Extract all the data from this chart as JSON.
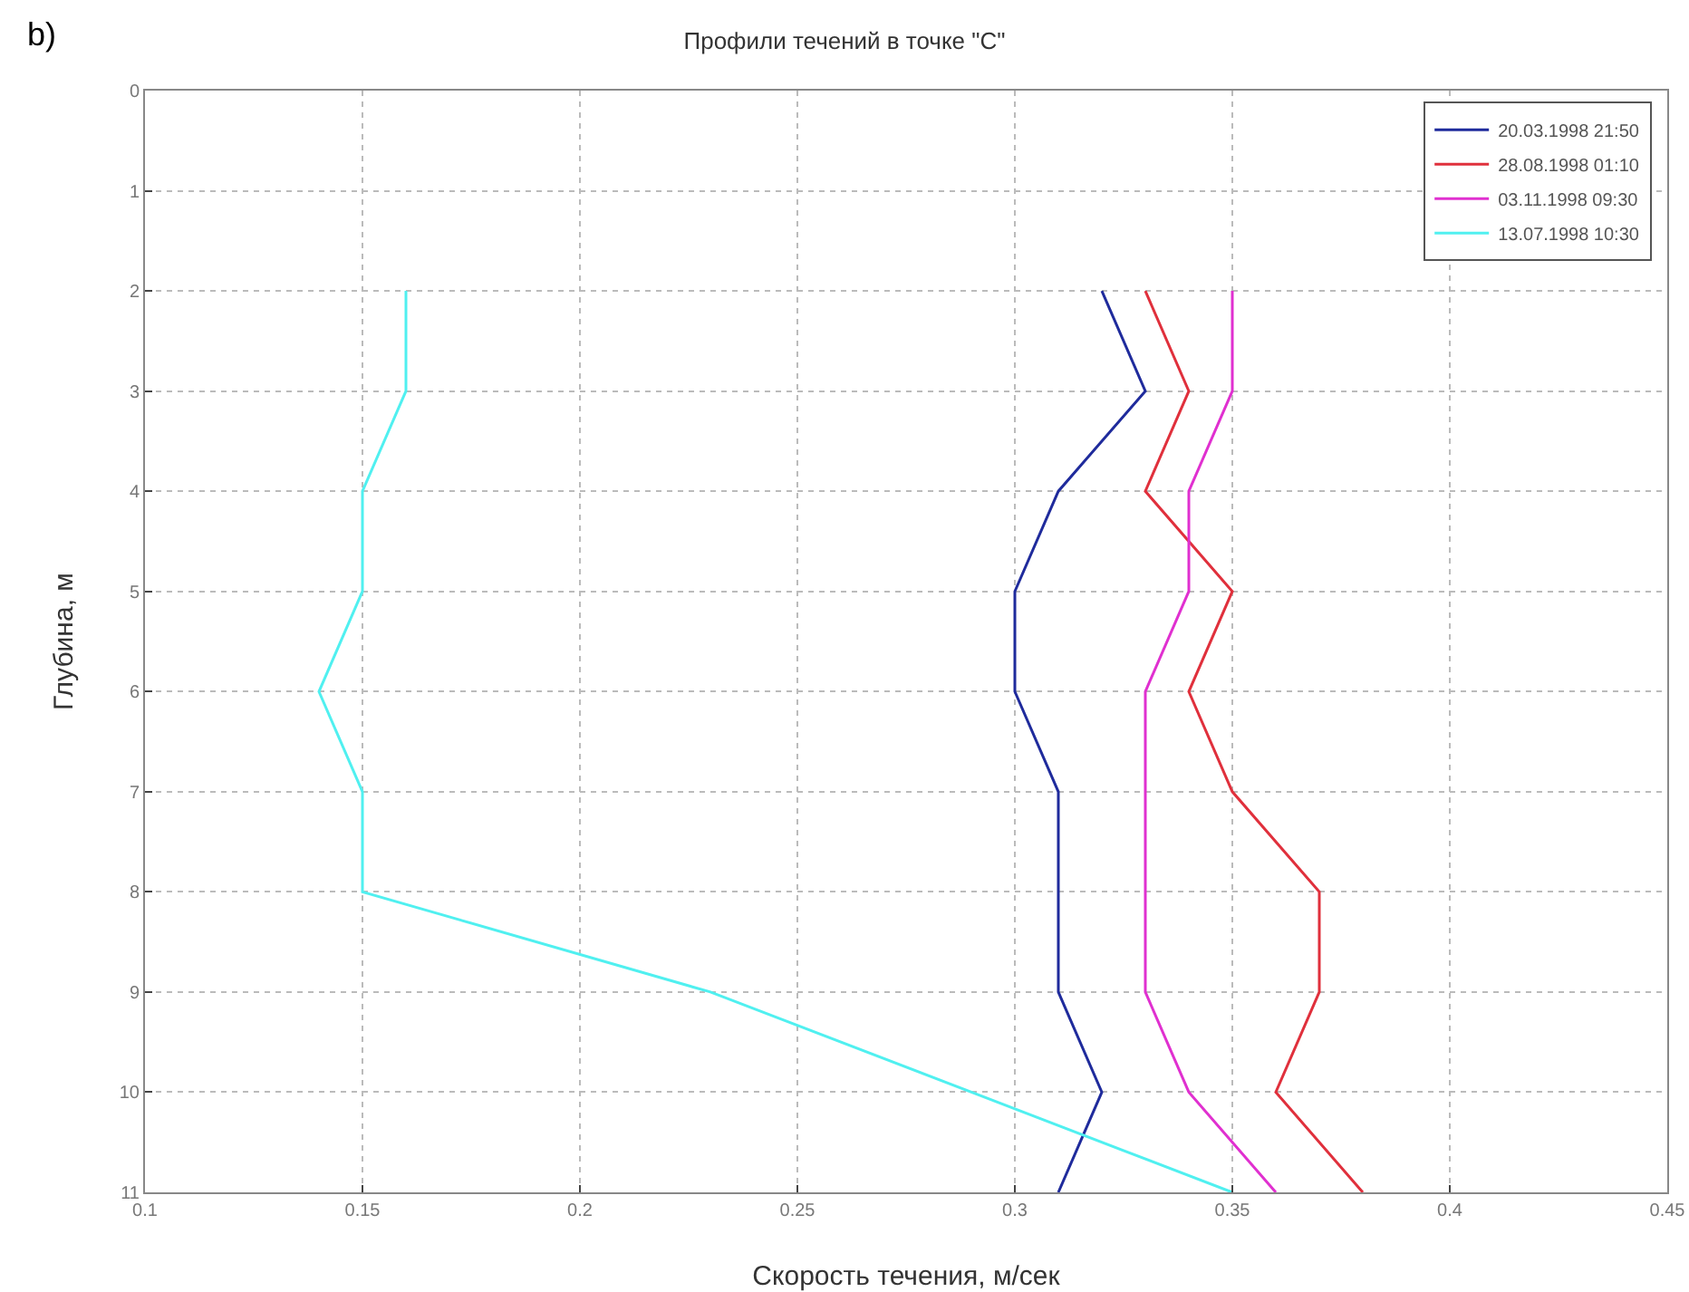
{
  "chart_data": {
    "type": "line",
    "title": "Профили течений в точке \"C\"",
    "xlabel": "Скорость течения, м/сек",
    "ylabel": "Глубина, м",
    "annotations": [
      "b)"
    ],
    "xlim": [
      0.1,
      0.45
    ],
    "xticks": [
      0.1,
      0.15,
      0.2,
      0.25,
      0.3,
      0.35,
      0.4,
      0.45
    ],
    "ylim": [
      11,
      0
    ],
    "yticks": [
      0,
      1,
      2,
      3,
      4,
      5,
      6,
      7,
      8,
      9,
      10,
      11
    ],
    "grid": true,
    "legend": "top right",
    "marker": "none",
    "line_style": "solid",
    "series": [
      {
        "name": "20.03.1998 21:50",
        "color": "#1f2b9c",
        "x": [
          0.32,
          0.33,
          0.31,
          0.3,
          0.3,
          0.31,
          0.31,
          0.31,
          0.32,
          0.31
        ],
        "values": [
          2,
          3,
          4,
          5,
          6,
          7,
          8,
          9,
          10,
          11
        ]
      },
      {
        "name": "28.08.1998 01:10",
        "color": "#e0303c",
        "x": [
          0.33,
          0.34,
          0.33,
          0.35,
          0.34,
          0.35,
          0.37,
          0.37,
          0.36,
          0.38
        ],
        "values": [
          2,
          3,
          4,
          5,
          6,
          7,
          8,
          9,
          10,
          11
        ]
      },
      {
        "name": "03.11.1998 09:30",
        "color": "#e030d0",
        "x": [
          0.35,
          0.35,
          0.34,
          0.34,
          0.33,
          0.33,
          0.33,
          0.33,
          0.34,
          0.36
        ],
        "values": [
          2,
          3,
          4,
          5,
          6,
          7,
          8,
          9,
          10,
          11
        ]
      },
      {
        "name": "13.07.1998 10:30",
        "color": "#50f0f0",
        "x": [
          0.16,
          0.16,
          0.15,
          0.15,
          0.14,
          0.15,
          0.15,
          0.23,
          0.29,
          0.35
        ],
        "values": [
          2,
          3,
          4,
          5,
          6,
          7,
          8,
          9,
          10,
          11
        ]
      }
    ]
  }
}
